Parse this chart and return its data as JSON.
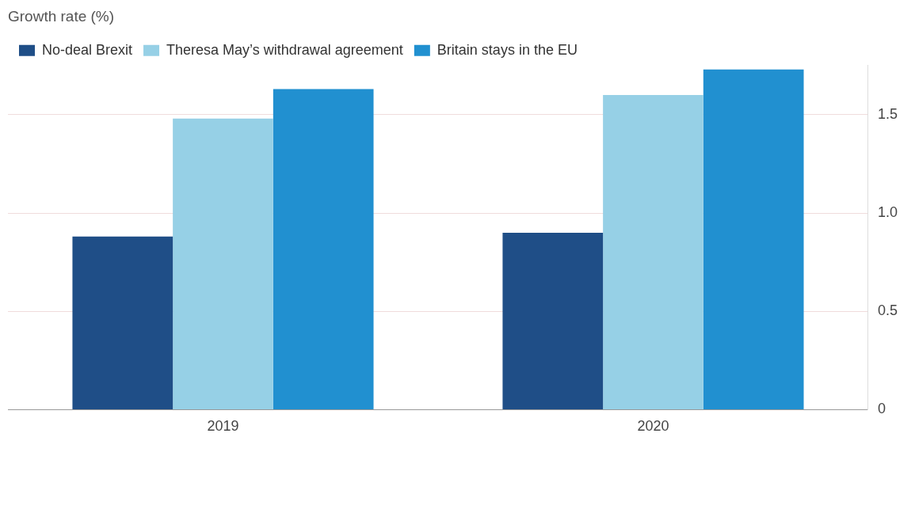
{
  "chart_data": {
    "type": "bar",
    "title": "Growth rate (%)",
    "categories": [
      "2019",
      "2020"
    ],
    "series": [
      {
        "name": "No-deal Brexit",
        "color": "#1f4e87",
        "values": [
          0.88,
          0.9
        ]
      },
      {
        "name": "Theresa May’s withdrawal agreement",
        "color": "#96d0e6",
        "values": [
          1.48,
          1.6
        ]
      },
      {
        "name": "Britain stays in the EU",
        "color": "#2190d0",
        "values": [
          1.63,
          1.73
        ]
      }
    ],
    "ylim": [
      0,
      1.75
    ],
    "yticks": [
      0,
      0.5,
      {
        "value": 1,
        "label": "1.0"
      },
      1.5
    ],
    "grid": "y",
    "legend": "top left"
  }
}
